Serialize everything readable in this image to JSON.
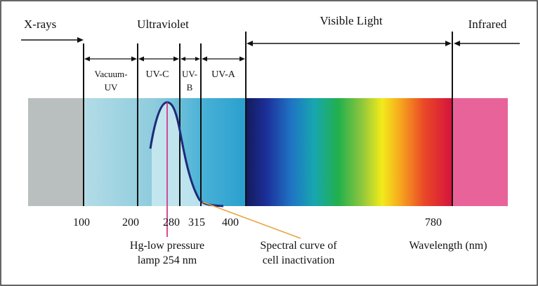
{
  "regions": {
    "xrays": "X-rays",
    "ultraviolet": "Ultraviolet",
    "visible": "Visible Light",
    "infrared": "Infrared"
  },
  "uv_bands": {
    "vacuum_uv_line1": "Vacuum-",
    "vacuum_uv_line2": "UV",
    "uvc": "UV-C",
    "uvb_line1": "UV-",
    "uvb_line2": "B",
    "uva": "UV-A"
  },
  "ticks": [
    "100",
    "200",
    "280",
    "315",
    "400",
    "780"
  ],
  "annotations": {
    "lamp_line1": "Hg-low pressure",
    "lamp_line2": "lamp 254 nm",
    "curve_line1": "Spectral curve of",
    "curve_line2": "cell inactivation",
    "wavelength_label": "Wavelength (nm)"
  },
  "colors": {
    "xray_band": "#b9bfbf",
    "uv_light": "#a6d6e2",
    "uva_band": "#2aa3cf",
    "infrared_band": "#e9639b",
    "curve": "#1e2a78",
    "lamp_line": "#d4388a",
    "curve_pointer": "#e8a33a"
  }
}
